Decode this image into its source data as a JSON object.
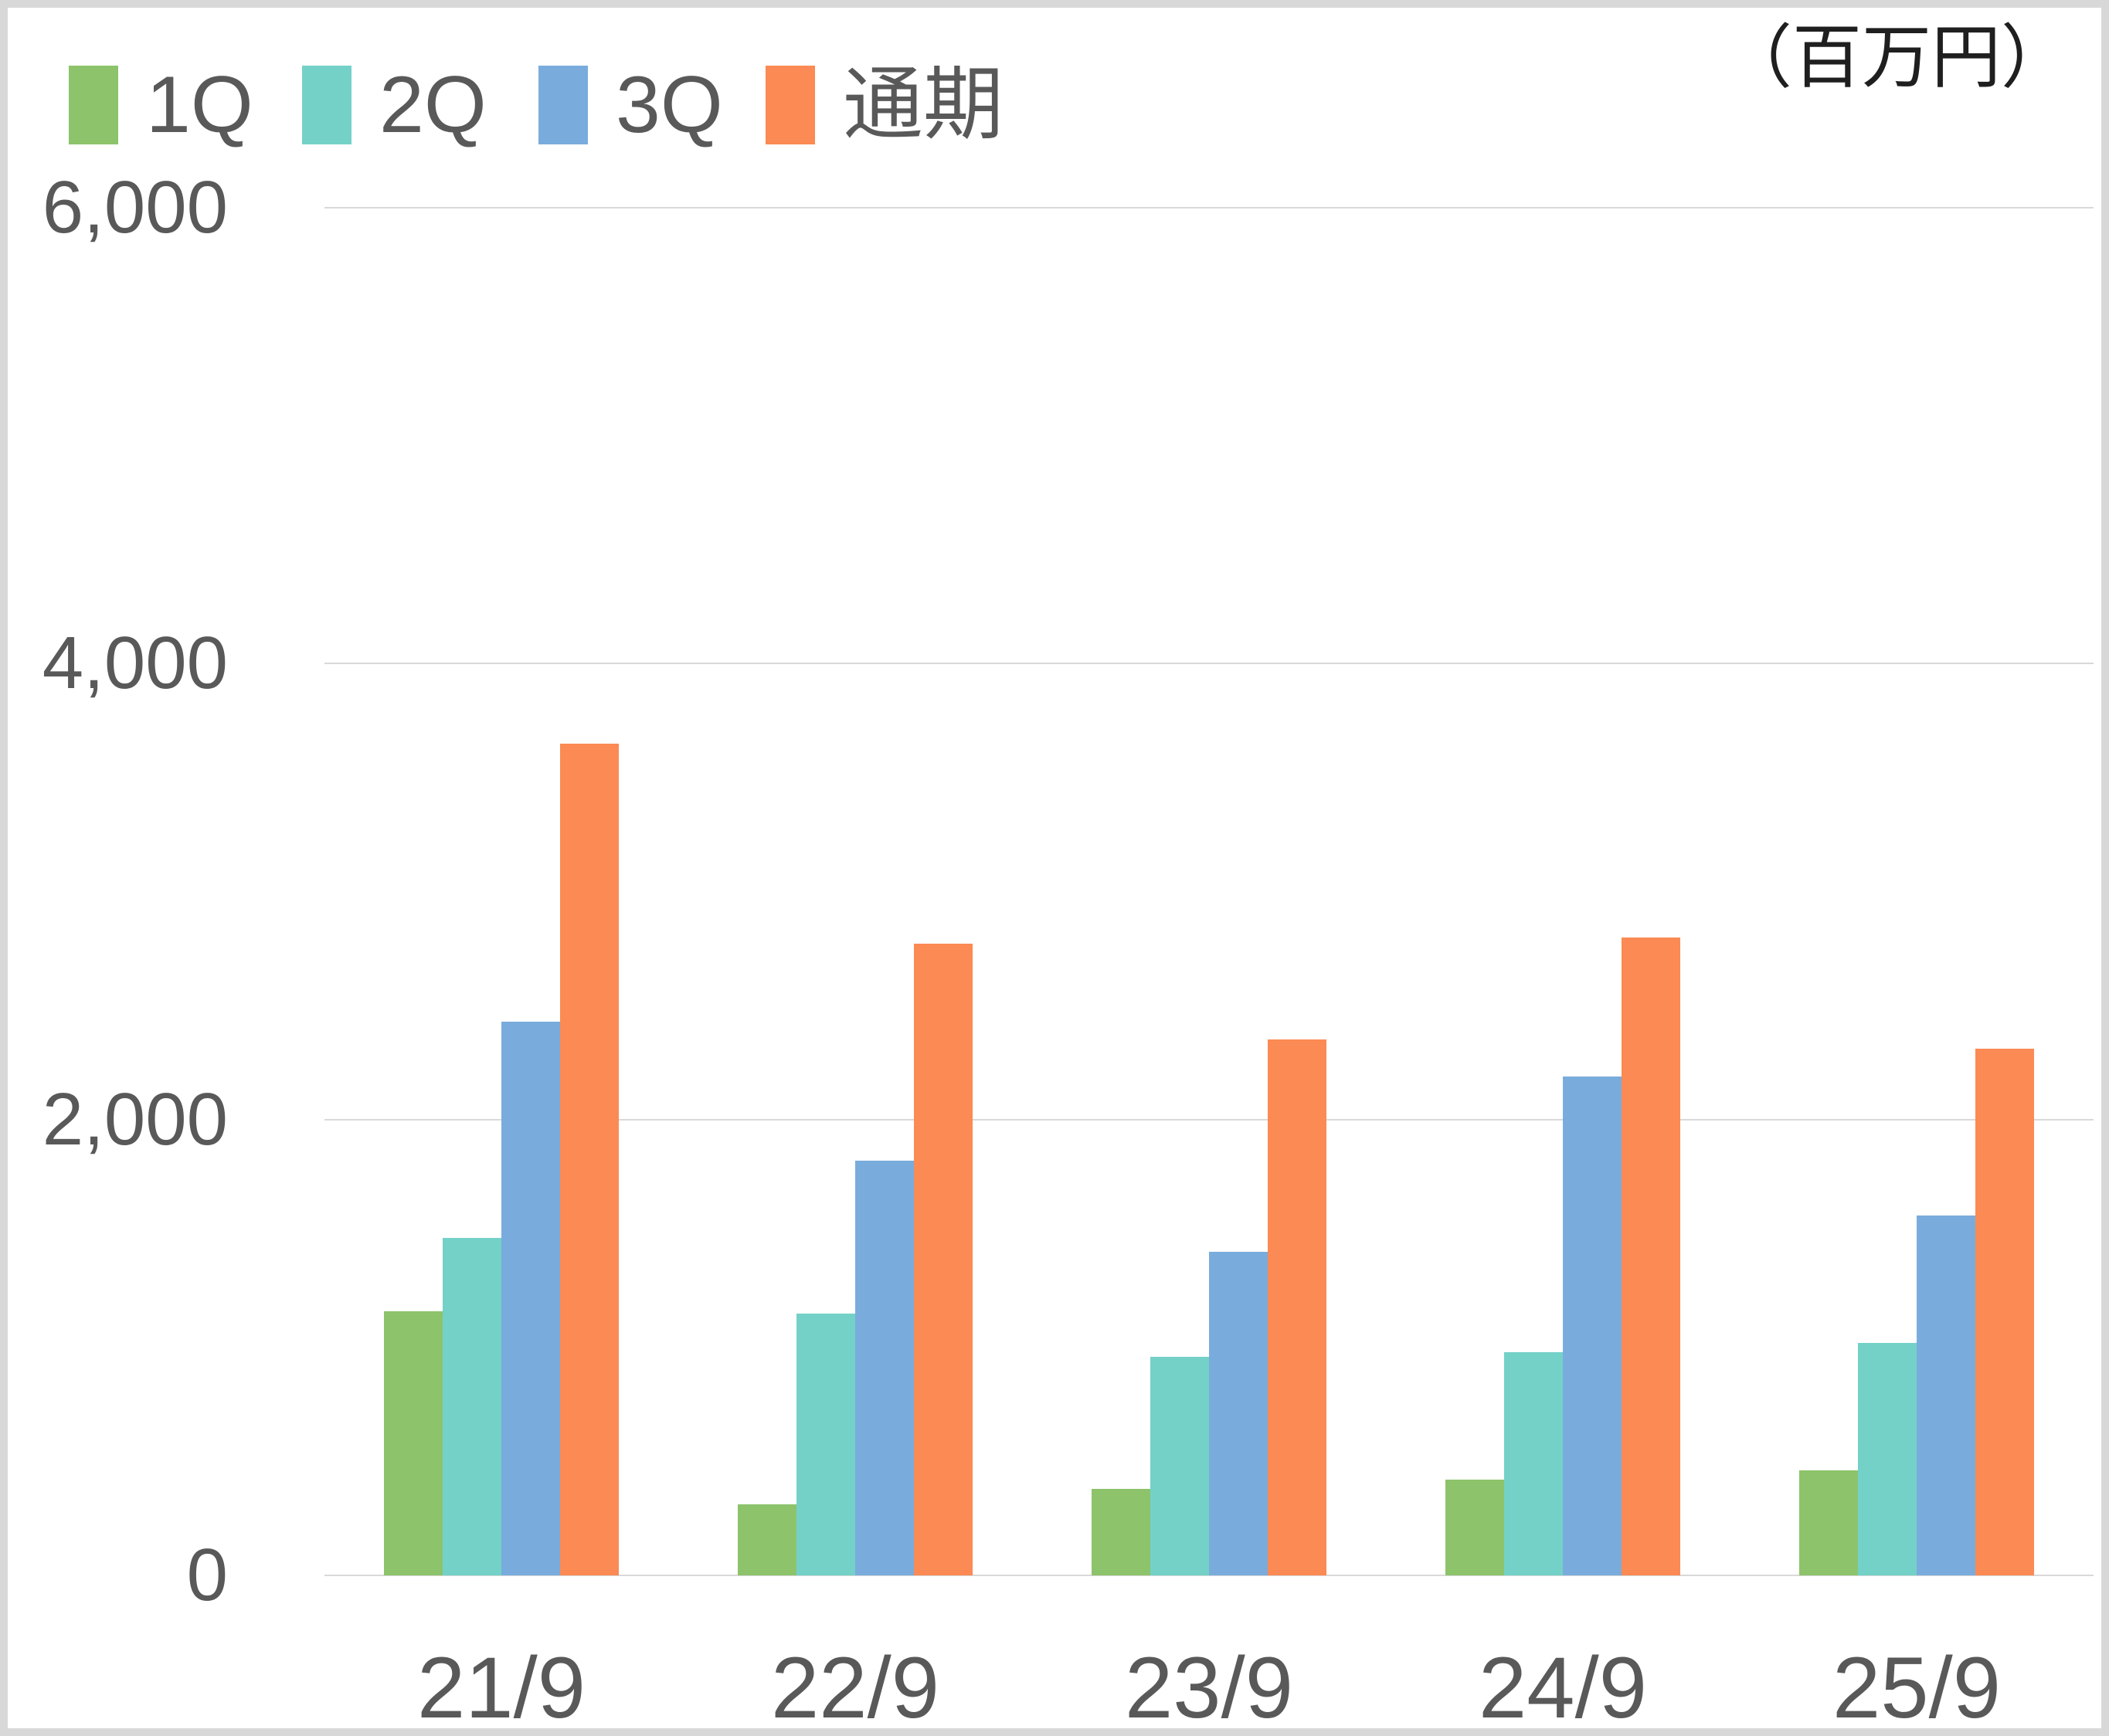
{
  "unit_label": "（百万円）",
  "legend": {
    "items": [
      {
        "label": "1Q",
        "color": "#8DC36B"
      },
      {
        "label": "2Q",
        "color": "#74D1C7"
      },
      {
        "label": "3Q",
        "color": "#79ACDC"
      },
      {
        "label": "通期",
        "color": "#FB8A54"
      }
    ]
  },
  "chart_data": {
    "type": "bar",
    "title": "",
    "unit": "百万円",
    "categories": [
      "21/9",
      "22/9",
      "23/9",
      "24/9",
      "25/9"
    ],
    "series": [
      {
        "name": "1Q",
        "color": "#8DC36B",
        "values": [
          1160,
          310,
          380,
          420,
          460
        ]
      },
      {
        "name": "2Q",
        "color": "#74D1C7",
        "values": [
          1480,
          1150,
          960,
          980,
          1020
        ]
      },
      {
        "name": "3Q",
        "color": "#79ACDC",
        "values": [
          2430,
          1820,
          1420,
          2190,
          1580
        ]
      },
      {
        "name": "通期",
        "color": "#FB8A54",
        "values": [
          3650,
          2770,
          2350,
          2800,
          2310
        ]
      }
    ],
    "ylim": [
      0,
      6000
    ],
    "gridline_values": [
      0,
      2000,
      4000,
      6000
    ],
    "ytick_labels": [
      "0",
      "2,000",
      "4,000",
      "6,000"
    ],
    "grid": "horizontal",
    "legend_position": "top-left",
    "colors": {
      "axis_text": "#595959",
      "gridline": "#d9d9d9",
      "unit_text": "#1f1f1f",
      "background": "#ffffff",
      "frame_border": "#d8d8d8"
    }
  }
}
